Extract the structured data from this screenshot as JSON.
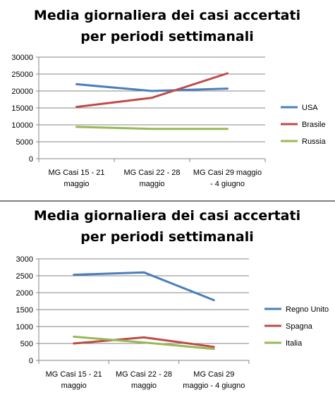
{
  "colors": {
    "blue": "#4a7ebb",
    "red": "#be4b48",
    "green": "#98b954",
    "grid": "#868686",
    "axis": "#868686"
  },
  "chart_data": [
    {
      "type": "line",
      "title_lines": [
        "Media giornaliera dei casi accertati",
        "per periodi settimanali"
      ],
      "categories": [
        [
          "MG Casi 15 - 21",
          "maggio"
        ],
        [
          "MG Casi 22 - 28",
          "maggio"
        ],
        [
          "MG Casi 29 maggio",
          "- 4 giugno"
        ]
      ],
      "yticks": [
        "0",
        "5000",
        "10000",
        "15000",
        "20000",
        "25000",
        "30000"
      ],
      "ylim": [
        0,
        30000
      ],
      "grid": true,
      "legend": "right",
      "series": [
        {
          "name": "USA",
          "values": [
            22000,
            20000,
            20700
          ],
          "color": "#4a7ebb"
        },
        {
          "name": "Brasile",
          "values": [
            15300,
            18000,
            25200
          ],
          "color": "#be4b48"
        },
        {
          "name": "Russia",
          "values": [
            9400,
            8800,
            8800
          ],
          "color": "#98b954"
        }
      ]
    },
    {
      "type": "line",
      "title_lines": [
        "Media giornaliera dei casi accertati",
        "per periodi settimanali"
      ],
      "categories": [
        [
          "MG Casi 15 - 21",
          "maggio"
        ],
        [
          "MG Casi 22 - 28",
          "maggio"
        ],
        [
          "MG Casi 29",
          "maggio - 4 giugno"
        ]
      ],
      "yticks": [
        "0",
        "500",
        "1000",
        "1500",
        "2000",
        "2500",
        "3000"
      ],
      "ylim": [
        0,
        3000
      ],
      "grid": true,
      "legend": "right",
      "series": [
        {
          "name": "Regno Unito",
          "values": [
            2530,
            2600,
            1780
          ],
          "color": "#4a7ebb"
        },
        {
          "name": "Spagna",
          "values": [
            500,
            680,
            400
          ],
          "color": "#be4b48"
        },
        {
          "name": "Italia",
          "values": [
            700,
            530,
            340
          ],
          "color": "#98b954"
        }
      ]
    }
  ]
}
